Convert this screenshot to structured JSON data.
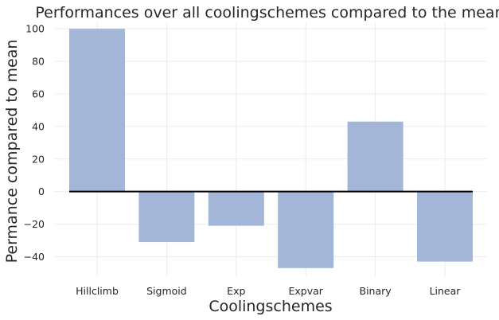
{
  "chart_data": {
    "type": "bar",
    "title": "Performances over all coolingschemes compared to the mean",
    "xlabel": "Coolingschemes",
    "ylabel": "Permance compared to mean",
    "categories": [
      "Hillclimb",
      "Sigmoid",
      "Exp",
      "Expvar",
      "Binary",
      "Linear"
    ],
    "values": [
      100,
      -31,
      -21,
      -47,
      43,
      -43
    ],
    "ylim": [
      -52,
      104
    ],
    "yticks": [
      100,
      80,
      60,
      40,
      20,
      0,
      -20,
      -40
    ],
    "ytick_labels": [
      "100",
      "80",
      "60",
      "40",
      "20",
      "0",
      "−20",
      "−40"
    ],
    "bar_color": "#a3b6d7",
    "zero_line_color": "#000000",
    "grid": true
  }
}
